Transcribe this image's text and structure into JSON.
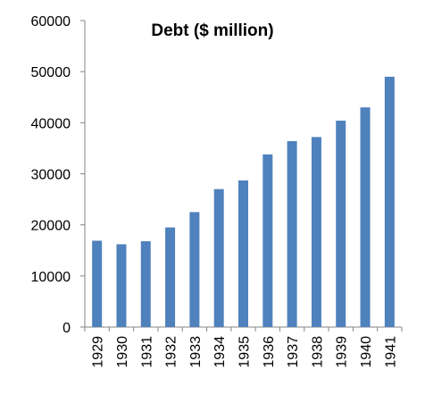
{
  "chart_data": {
    "type": "bar",
    "title": "Debt ($ million)",
    "xlabel": "",
    "ylabel": "",
    "categories": [
      "1929",
      "1930",
      "1931",
      "1932",
      "1933",
      "1934",
      "1935",
      "1936",
      "1937",
      "1938",
      "1939",
      "1940",
      "1941"
    ],
    "values": [
      16900,
      16200,
      16800,
      19500,
      22500,
      27000,
      28700,
      33800,
      36400,
      37200,
      40400,
      43000,
      49000
    ],
    "ylim": [
      0,
      60000
    ],
    "yticks": [
      "0",
      "10000",
      "20000",
      "30000",
      "40000",
      "50000",
      "60000"
    ],
    "grid": false,
    "legend": "none",
    "bar_color": "#4F81BD"
  }
}
